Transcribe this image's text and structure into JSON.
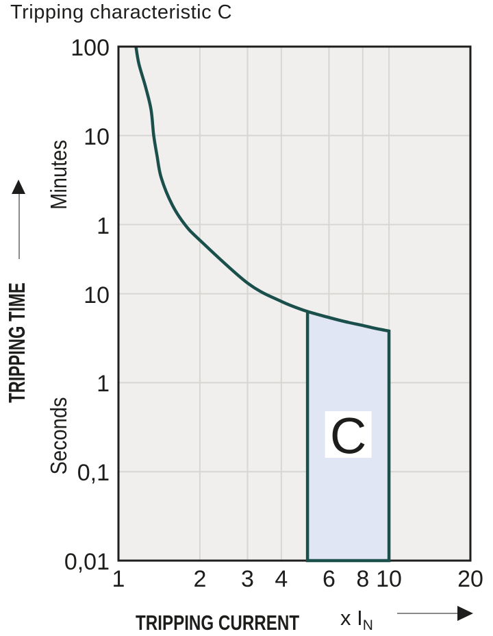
{
  "title": "Tripping characteristic C",
  "y_axis": {
    "title": "TRIPPING TIME",
    "upper_unit": "Minutes",
    "lower_unit": "Seconds"
  },
  "x_axis": {
    "title": "TRIPPING CURRENT",
    "unit_prefix": "x I",
    "unit_subscript": "N"
  },
  "colors": {
    "curve": "#1b4f4b",
    "region_fill": "#e0e6f4",
    "plot_bg": "#f0efed",
    "grid": "#d6d6d3",
    "frame": "#1e1e1c",
    "text": "#1d1d1b",
    "arrow_line": "#8a8a8a",
    "label_box": "#ffffff"
  },
  "chart_data": {
    "type": "line",
    "title": "Tripping characteristic C",
    "xlabel": "TRIPPING CURRENT (x IN)",
    "ylabel": "TRIPPING TIME",
    "x_scale": "log",
    "y_scale": "log",
    "grid": true,
    "legend": null,
    "xlim": [
      1,
      20
    ],
    "ylim_seconds": [
      0.01,
      6000
    ],
    "x_ticks": [
      {
        "label": "1",
        "value": 1
      },
      {
        "label": "2",
        "value": 2
      },
      {
        "label": "3",
        "value": 3
      },
      {
        "label": "4",
        "value": 4
      },
      {
        "label": "6",
        "value": 6
      },
      {
        "label": "8",
        "value": 8
      },
      {
        "label": "10",
        "value": 10
      },
      {
        "label": "20",
        "value": 20
      }
    ],
    "y_ticks": [
      {
        "label": "100",
        "unit": "minutes",
        "seconds": 6000
      },
      {
        "label": "10",
        "unit": "minutes",
        "seconds": 600
      },
      {
        "label": "1",
        "unit": "minutes",
        "seconds": 60
      },
      {
        "label": "10",
        "unit": "seconds",
        "seconds": 10
      },
      {
        "label": "1",
        "unit": "seconds",
        "seconds": 1
      },
      {
        "label": "0,1",
        "unit": "seconds",
        "seconds": 0.1
      },
      {
        "label": "0,01",
        "unit": "seconds",
        "seconds": 0.01
      }
    ],
    "series": [
      {
        "name": "thermal-tripping-curve",
        "points_x_in_t_seconds": [
          [
            1.16,
            6000
          ],
          [
            1.19,
            3850
          ],
          [
            1.26,
            2100
          ],
          [
            1.32,
            1170
          ],
          [
            1.35,
            600
          ],
          [
            1.39,
            350
          ],
          [
            1.44,
            200
          ],
          [
            1.58,
            100
          ],
          [
            1.76,
            60
          ],
          [
            2,
            40
          ],
          [
            3,
            13.2
          ],
          [
            4,
            8.2
          ],
          [
            5,
            6.3
          ],
          [
            6,
            5.4
          ],
          [
            7,
            4.8
          ],
          [
            8,
            4.4
          ],
          [
            9,
            4.05
          ],
          [
            10,
            3.8
          ]
        ]
      }
    ],
    "region": {
      "label": "C",
      "x_range": [
        5,
        10
      ],
      "bottom_seconds": 0.01,
      "top_points_x_in_t_seconds": [
        [
          5,
          6.3
        ],
        [
          6,
          5.4
        ],
        [
          7,
          4.8
        ],
        [
          8,
          4.4
        ],
        [
          9,
          4.05
        ],
        [
          10,
          3.8
        ]
      ]
    }
  }
}
